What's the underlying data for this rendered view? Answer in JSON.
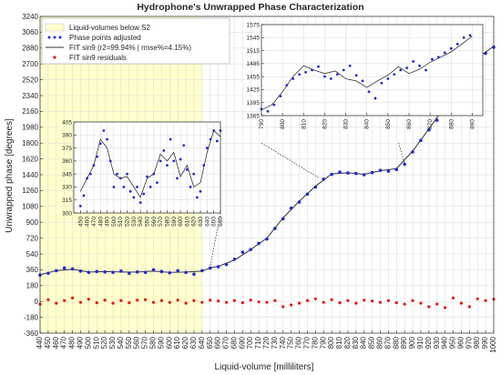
{
  "chart_data": {
    "type": "scatter",
    "title": "Hydrophone's Unwrapped Phase Characterization",
    "xlabel": "Liquid-volume [milliliters]",
    "ylabel": "Unwrapped phase [degrees]",
    "xlim": [
      440,
      1000
    ],
    "ylim": [
      -360,
      3240
    ],
    "xticks": [
      440,
      450,
      460,
      470,
      480,
      490,
      500,
      510,
      520,
      530,
      540,
      550,
      560,
      570,
      580,
      590,
      600,
      610,
      620,
      630,
      640,
      650,
      660,
      670,
      680,
      690,
      700,
      710,
      720,
      730,
      740,
      750,
      760,
      770,
      780,
      790,
      800,
      810,
      820,
      830,
      840,
      850,
      860,
      870,
      880,
      890,
      900,
      910,
      920,
      930,
      940,
      950,
      960,
      970,
      980,
      990,
      1000
    ],
    "yticks": [
      -360,
      -180,
      0,
      180,
      360,
      540,
      720,
      900,
      1080,
      1260,
      1440,
      1620,
      1800,
      1980,
      2160,
      2340,
      2520,
      2700,
      2880,
      3060,
      3240
    ],
    "grid": true,
    "legend_position": "top-left",
    "shaded_region": {
      "label": "Liquid-volumes below S2",
      "x_range": [
        440,
        640
      ],
      "color": "#ffffcc"
    },
    "series": [
      {
        "name": "Phase points adjusted",
        "color": "#1f2bd6",
        "marker": "dot",
        "x": [
          440,
          450,
          460,
          470,
          480,
          490,
          500,
          510,
          520,
          530,
          540,
          550,
          560,
          570,
          580,
          590,
          600,
          610,
          620,
          630,
          640,
          650,
          660,
          670,
          680,
          690,
          700,
          710,
          720,
          730,
          740,
          750,
          760,
          770,
          780,
          790,
          800,
          810,
          820,
          830,
          840,
          850,
          860,
          870,
          880,
          890,
          900,
          910,
          920,
          930,
          940,
          950,
          960,
          970,
          980,
          990,
          1000
        ],
        "y": [
          300,
          320,
          350,
          380,
          370,
          345,
          330,
          340,
          335,
          330,
          345,
          320,
          335,
          330,
          360,
          340,
          325,
          350,
          330,
          310,
          350,
          380,
          395,
          420,
          480,
          560,
          590,
          660,
          710,
          830,
          940,
          1060,
          1130,
          1220,
          1300,
          1390,
          1445,
          1470,
          1460,
          1455,
          1440,
          1465,
          1490,
          1480,
          1500,
          1560,
          1700,
          1830,
          1950,
          2060,
          2200,
          2380,
          2530,
          2650,
          2760,
          2820,
          2890
        ]
      },
      {
        "name": "FIT sin9 (r2=99.94% | rmse%=4.15%)",
        "color": "#333333",
        "marker": "line",
        "x": [
          440,
          460,
          480,
          500,
          520,
          540,
          560,
          580,
          600,
          620,
          640,
          650,
          660,
          680,
          700,
          720,
          740,
          760,
          780,
          800,
          820,
          840,
          860,
          880,
          900,
          920,
          940,
          960,
          980,
          1000
        ],
        "y": [
          305,
          350,
          365,
          335,
          340,
          335,
          335,
          345,
          330,
          335,
          345,
          380,
          400,
          470,
          590,
          720,
          950,
          1140,
          1310,
          1450,
          1462,
          1445,
          1485,
          1510,
          1710,
          1960,
          2220,
          2540,
          2770,
          2900
        ]
      },
      {
        "name": "FIT sin9 residuals",
        "color": "#e8170f",
        "marker": "dot",
        "x": [
          440,
          450,
          460,
          470,
          480,
          490,
          500,
          510,
          520,
          530,
          540,
          550,
          560,
          570,
          580,
          590,
          600,
          610,
          620,
          630,
          640,
          650,
          660,
          670,
          680,
          690,
          700,
          710,
          720,
          730,
          740,
          750,
          760,
          770,
          780,
          790,
          800,
          810,
          820,
          830,
          840,
          850,
          860,
          870,
          880,
          890,
          900,
          910,
          920,
          930,
          940,
          950,
          960,
          970,
          980,
          990,
          1000
        ],
        "y": [
          -30,
          20,
          -20,
          10,
          40,
          -10,
          25,
          -15,
          15,
          -20,
          10,
          -15,
          15,
          20,
          -10,
          10,
          -10,
          15,
          -20,
          10,
          -10,
          15,
          5,
          -10,
          10,
          -15,
          15,
          -5,
          -10,
          10,
          -60,
          -40,
          -20,
          10,
          30,
          -10,
          20,
          -15,
          10,
          -20,
          15,
          5,
          -10,
          10,
          -15,
          -30,
          10,
          -20,
          -60,
          -30,
          -70,
          40,
          -20,
          -60,
          30,
          10,
          25
        ]
      }
    ],
    "insets": [
      {
        "xlim": [
          440,
          660
        ],
        "ylim": [
          300,
          405
        ],
        "xticks": [
          450,
          460,
          470,
          480,
          490,
          500,
          510,
          520,
          530,
          540,
          550,
          560,
          570,
          580,
          590,
          600,
          610,
          620,
          630,
          640,
          650,
          660
        ],
        "yticks": [
          300,
          315,
          330,
          345,
          360,
          375,
          390,
          405
        ],
        "points_x": [
          450,
          455,
          460,
          465,
          470,
          475,
          480,
          485,
          490,
          495,
          500,
          505,
          510,
          515,
          520,
          525,
          530,
          535,
          540,
          545,
          550,
          555,
          560,
          565,
          570,
          575,
          580,
          585,
          590,
          595,
          600,
          605,
          610,
          615,
          620,
          625,
          630,
          635,
          640,
          645,
          650,
          655,
          660
        ],
        "points_y": [
          308,
          320,
          340,
          345,
          355,
          365,
          380,
          395,
          385,
          360,
          330,
          345,
          340,
          330,
          345,
          325,
          318,
          330,
          312,
          322,
          342,
          330,
          345,
          335,
          360,
          372,
          355,
          385,
          360,
          340,
          362,
          378,
          350,
          330,
          345,
          318,
          325,
          355,
          375,
          385,
          395,
          383,
          395
        ],
        "fit_x": [
          450,
          460,
          470,
          480,
          490,
          500,
          510,
          520,
          530,
          540,
          550,
          560,
          570,
          580,
          590,
          600,
          610,
          620,
          630,
          640,
          650,
          660
        ],
        "fit_y": [
          325,
          340,
          355,
          385,
          375,
          345,
          340,
          342,
          330,
          318,
          340,
          345,
          368,
          360,
          370,
          342,
          355,
          330,
          335,
          370,
          395,
          388
        ]
      },
      {
        "xlim": [
          790,
          895
        ],
        "ylim": [
          1365,
          1575
        ],
        "xticks": [
          790,
          800,
          810,
          820,
          830,
          840,
          850,
          860,
          870,
          880,
          890
        ],
        "yticks": [
          1365,
          1395,
          1425,
          1455,
          1485,
          1515,
          1545,
          1575
        ],
        "points_x": [
          790,
          793,
          796,
          799,
          802,
          805,
          808,
          811,
          814,
          817,
          820,
          823,
          826,
          829,
          832,
          835,
          838,
          841,
          844,
          847,
          850,
          853,
          856,
          859,
          862,
          865,
          868,
          871,
          874,
          877,
          880,
          883,
          886,
          889
        ],
        "points_y": [
          1380,
          1375,
          1390,
          1410,
          1435,
          1450,
          1460,
          1465,
          1470,
          1478,
          1455,
          1450,
          1460,
          1470,
          1480,
          1458,
          1445,
          1420,
          1405,
          1440,
          1450,
          1460,
          1470,
          1475,
          1490,
          1480,
          1470,
          1495,
          1500,
          1510,
          1520,
          1530,
          1545,
          1550
        ],
        "fit_x": [
          790,
          795,
          800,
          805,
          810,
          815,
          820,
          825,
          830,
          835,
          840,
          845,
          850,
          855,
          860,
          865,
          870,
          875,
          880,
          885,
          890
        ],
        "fit_y": [
          1378,
          1390,
          1420,
          1455,
          1480,
          1470,
          1462,
          1468,
          1450,
          1445,
          1430,
          1445,
          1458,
          1478,
          1462,
          1472,
          1488,
          1500,
          1512,
          1530,
          1548
        ]
      }
    ]
  }
}
